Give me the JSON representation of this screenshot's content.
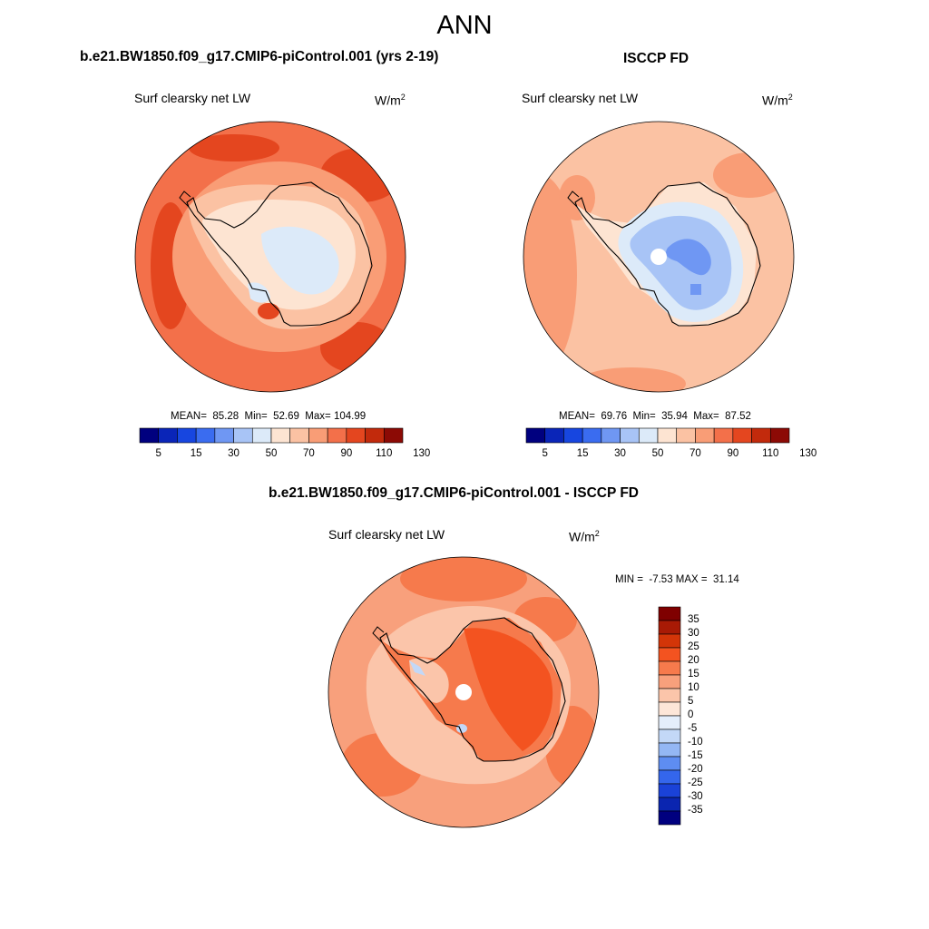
{
  "figure": {
    "season_title": "ANN"
  },
  "panels": [
    {
      "title": "b.e21.BW1850.f09_g17.CMIP6-piControl.001 (yrs 2-19)",
      "variable": "Surf clearsky net LW",
      "units_base": "W/m",
      "units_exp": "2",
      "stats": "MEAN=  85.28  Min=  52.69  Max= 104.99",
      "colorbar_ticks": [
        "5",
        "15",
        "30",
        "50",
        "70",
        "90",
        "110",
        "130"
      ]
    },
    {
      "title": "ISCCP FD",
      "variable": "Surf clearsky net LW",
      "units_base": "W/m",
      "units_exp": "2",
      "stats": "MEAN=  69.76  Min=  35.94  Max=  87.52",
      "colorbar_ticks": [
        "5",
        "15",
        "30",
        "50",
        "70",
        "90",
        "110",
        "130"
      ]
    },
    {
      "title": "b.e21.BW1850.f09_g17.CMIP6-piControl.001 - ISCCP FD",
      "variable": "Surf clearsky net LW",
      "units_base": "W/m",
      "units_exp": "2",
      "stats": "MIN =  -7.53 MAX =  31.14",
      "colorbar_ticks": [
        "35",
        "30",
        "25",
        "20",
        "15",
        "10",
        "5",
        "0",
        "-5",
        "-10",
        "-15",
        "-20",
        "-25",
        "-30",
        "-35"
      ]
    }
  ],
  "colors": {
    "abs_scale": [
      "#00007f",
      "#0a25b8",
      "#1746e0",
      "#3a6cf0",
      "#6f97f3",
      "#a8c4f6",
      "#dceaf9",
      "#fde4d2",
      "#fbc2a3",
      "#f99d76",
      "#f3704a",
      "#e4461f",
      "#c22a0c",
      "#8c0a05"
    ],
    "diff_scale": [
      "#7f0000",
      "#a81a05",
      "#d33508",
      "#f35320",
      "#f67a4c",
      "#f8a07c",
      "#fbc5aa",
      "#fde6d8",
      "#e4eefb",
      "#c3d8f7",
      "#94b7f4",
      "#5e8df1",
      "#3466ec",
      "#1a42d8",
      "#0a25b0",
      "#00007f"
    ]
  },
  "chart_data": [
    {
      "type": "heatmap",
      "projection": "south-polar-stereographic",
      "title": "b.e21.BW1850.f09_g17.CMIP6-piControl.001 (yrs 2-19)",
      "variable": "Surf clearsky net LW",
      "units": "W/m2",
      "mean": 85.28,
      "min": 52.69,
      "max": 104.99,
      "contour_levels": [
        5,
        10,
        15,
        20,
        30,
        40,
        50,
        60,
        70,
        80,
        90,
        100,
        110,
        120,
        130
      ]
    },
    {
      "type": "heatmap",
      "projection": "south-polar-stereographic",
      "title": "ISCCP FD",
      "variable": "Surf clearsky net LW",
      "units": "W/m2",
      "mean": 69.76,
      "min": 35.94,
      "max": 87.52,
      "contour_levels": [
        5,
        10,
        15,
        20,
        30,
        40,
        50,
        60,
        70,
        80,
        90,
        100,
        110,
        120,
        130
      ]
    },
    {
      "type": "heatmap",
      "projection": "south-polar-stereographic",
      "title": "b.e21.BW1850.f09_g17.CMIP6-piControl.001 - ISCCP FD",
      "variable": "Surf clearsky net LW",
      "units": "W/m2",
      "min": -7.53,
      "max": 31.14,
      "contour_levels": [
        -35,
        -30,
        -25,
        -20,
        -15,
        -10,
        -5,
        0,
        5,
        10,
        15,
        20,
        25,
        30,
        35
      ]
    }
  ]
}
